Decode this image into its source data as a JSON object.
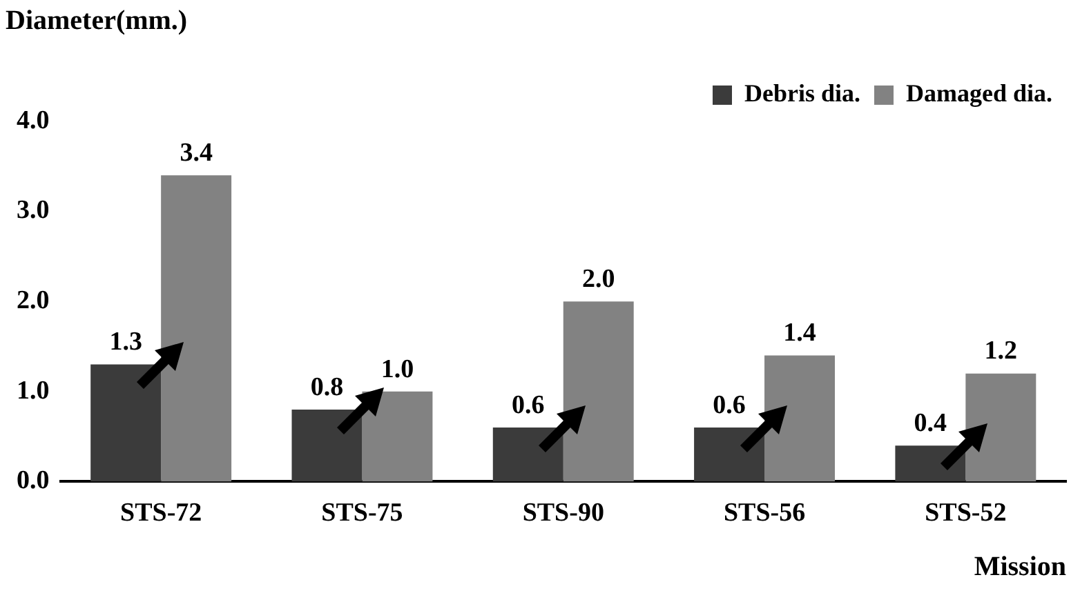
{
  "chart_data": {
    "type": "bar",
    "xlabel": "Mission",
    "ylabel": "Diameter(mm.)",
    "categories": [
      "STS-72",
      "STS-75",
      "STS-90",
      "STS-56",
      "STS-52"
    ],
    "series": [
      {
        "name": "Debris dia.",
        "color": "#3b3b3b",
        "values": [
          1.3,
          0.8,
          0.6,
          0.6,
          0.4
        ],
        "value_labels": [
          "1.3",
          "0.8",
          "0.6",
          "0.6",
          "0.4"
        ]
      },
      {
        "name": "Damaged dia.",
        "color": "#828282",
        "values": [
          3.4,
          1.0,
          2.0,
          1.4,
          1.2
        ],
        "value_labels": [
          "3.4",
          "1.0",
          "2.0",
          "1.4",
          "1.2"
        ]
      }
    ],
    "ylim": [
      0,
      4
    ],
    "yticks": [
      {
        "value": 0,
        "label": "0.0"
      },
      {
        "value": 1,
        "label": "1.0"
      },
      {
        "value": 2,
        "label": "2.0"
      },
      {
        "value": 3,
        "label": "3.0"
      },
      {
        "value": 4,
        "label": "4.0"
      }
    ],
    "grid": false,
    "legend": "top right"
  }
}
